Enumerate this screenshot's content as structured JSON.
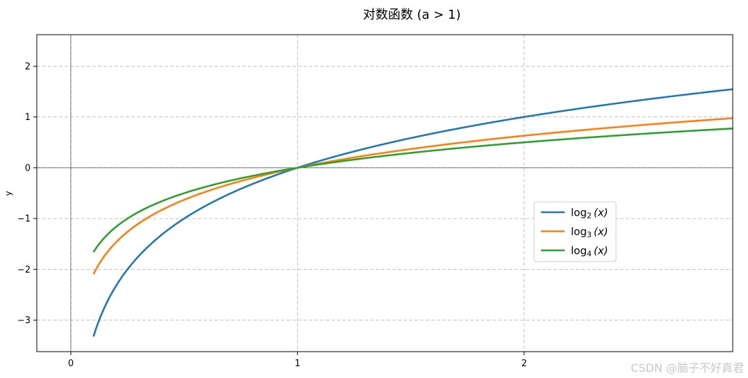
{
  "chart_data": {
    "type": "line",
    "title": "对数函数 (a > 1)",
    "xlabel": "",
    "ylabel": "y",
    "xlim": [
      -0.15,
      2.92
    ],
    "ylim": [
      -3.62,
      2.62
    ],
    "x_ticks": [
      0,
      1,
      2
    ],
    "y_ticks": [
      -3,
      -2,
      -1,
      0,
      1,
      2
    ],
    "x_domain": [
      0.1,
      2.92
    ],
    "grid": true,
    "grid_style": "dashed",
    "zero_lines": true,
    "legend_position": "center-right",
    "series": [
      {
        "name": "log2(x)",
        "label_base": "log",
        "label_sub": "2",
        "label_arg": "(x)",
        "base": 2,
        "color": "#1f77b4",
        "x": [
          0.1,
          0.2,
          0.3,
          0.5,
          0.7,
          1.0,
          1.5,
          2.0,
          2.5,
          2.92
        ],
        "y": [
          -3.32,
          -2.32,
          -1.74,
          -1.0,
          -0.51,
          0.0,
          0.58,
          1.0,
          1.32,
          1.55
        ]
      },
      {
        "name": "log3(x)",
        "label_base": "log",
        "label_sub": "3",
        "label_arg": "(x)",
        "base": 3,
        "color": "#ff7f0e",
        "x": [
          0.1,
          0.2,
          0.3,
          0.5,
          0.7,
          1.0,
          1.5,
          2.0,
          2.5,
          2.92
        ],
        "y": [
          -2.1,
          -1.46,
          -1.1,
          -0.63,
          -0.32,
          0.0,
          0.37,
          0.63,
          0.83,
          0.98
        ]
      },
      {
        "name": "log4(x)",
        "label_base": "log",
        "label_sub": "4",
        "label_arg": "(x)",
        "base": 4,
        "color": "#2ca02c",
        "x": [
          0.1,
          0.2,
          0.3,
          0.5,
          0.7,
          1.0,
          1.5,
          2.0,
          2.5,
          2.92
        ],
        "y": [
          -1.66,
          -1.16,
          -0.87,
          -0.5,
          -0.26,
          0.0,
          0.29,
          0.5,
          0.66,
          0.77
        ]
      }
    ]
  },
  "watermark": "CSDN @脑子不好真君"
}
